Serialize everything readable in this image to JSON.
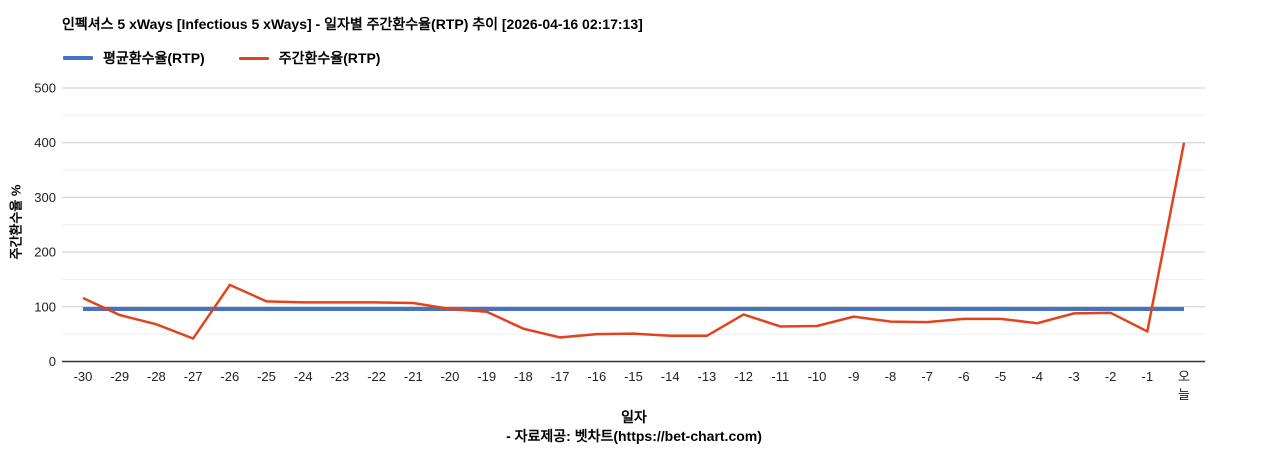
{
  "header": {
    "title": "인펙셔스 5 xWays [Infectious 5 xWays] - 일자별 주간환수율(RTP) 추이 [2026-04-16 02:17:13]"
  },
  "footer": {
    "text": "- 자료제공: 벳차트(https://bet-chart.com)"
  },
  "chart_data": {
    "type": "line",
    "title": "인펙셔스 5 xWays [Infectious 5 xWays] - 일자별 주간환수율(RTP) 추이 [2026-04-16 02:17:13]",
    "xlabel": "일자",
    "ylabel": "주간환수율 %",
    "ylim": [
      0,
      500
    ],
    "yticks": [
      0,
      100,
      200,
      300,
      400,
      500
    ],
    "grid": "horizontal-only, minor gridlines every 50",
    "legend_position": "top-left",
    "background": "#ffffff",
    "axis_color": "#333333",
    "major_grid_color": "#cccccc",
    "minor_grid_color": "#efefef",
    "categories": [
      "-30",
      "-29",
      "-28",
      "-27",
      "-26",
      "-25",
      "-24",
      "-23",
      "-22",
      "-21",
      "-20",
      "-19",
      "-18",
      "-17",
      "-16",
      "-15",
      "-14",
      "-13",
      "-12",
      "-11",
      "-10",
      "-9",
      "-8",
      "-7",
      "-6",
      "-5",
      "-4",
      "-3",
      "-2",
      "-1",
      "오늘"
    ],
    "series": [
      {
        "name": "평균환수율(RTP)",
        "color": "#4472c4",
        "width": 4,
        "values": [
          96,
          96,
          96,
          96,
          96,
          96,
          96,
          96,
          96,
          96,
          96,
          96,
          96,
          96,
          96,
          96,
          96,
          96,
          96,
          96,
          96,
          96,
          96,
          96,
          96,
          96,
          96,
          96,
          96,
          96,
          96
        ]
      },
      {
        "name": "주간환수율(RTP)",
        "color": "#e2431e",
        "width": 2.5,
        "values": [
          116,
          85,
          68,
          42,
          140,
          110,
          108,
          108,
          108,
          107,
          96,
          91,
          60,
          44,
          50,
          51,
          47,
          47,
          86,
          64,
          65,
          82,
          73,
          72,
          78,
          78,
          70,
          88,
          89,
          55,
          400
        ]
      }
    ]
  }
}
